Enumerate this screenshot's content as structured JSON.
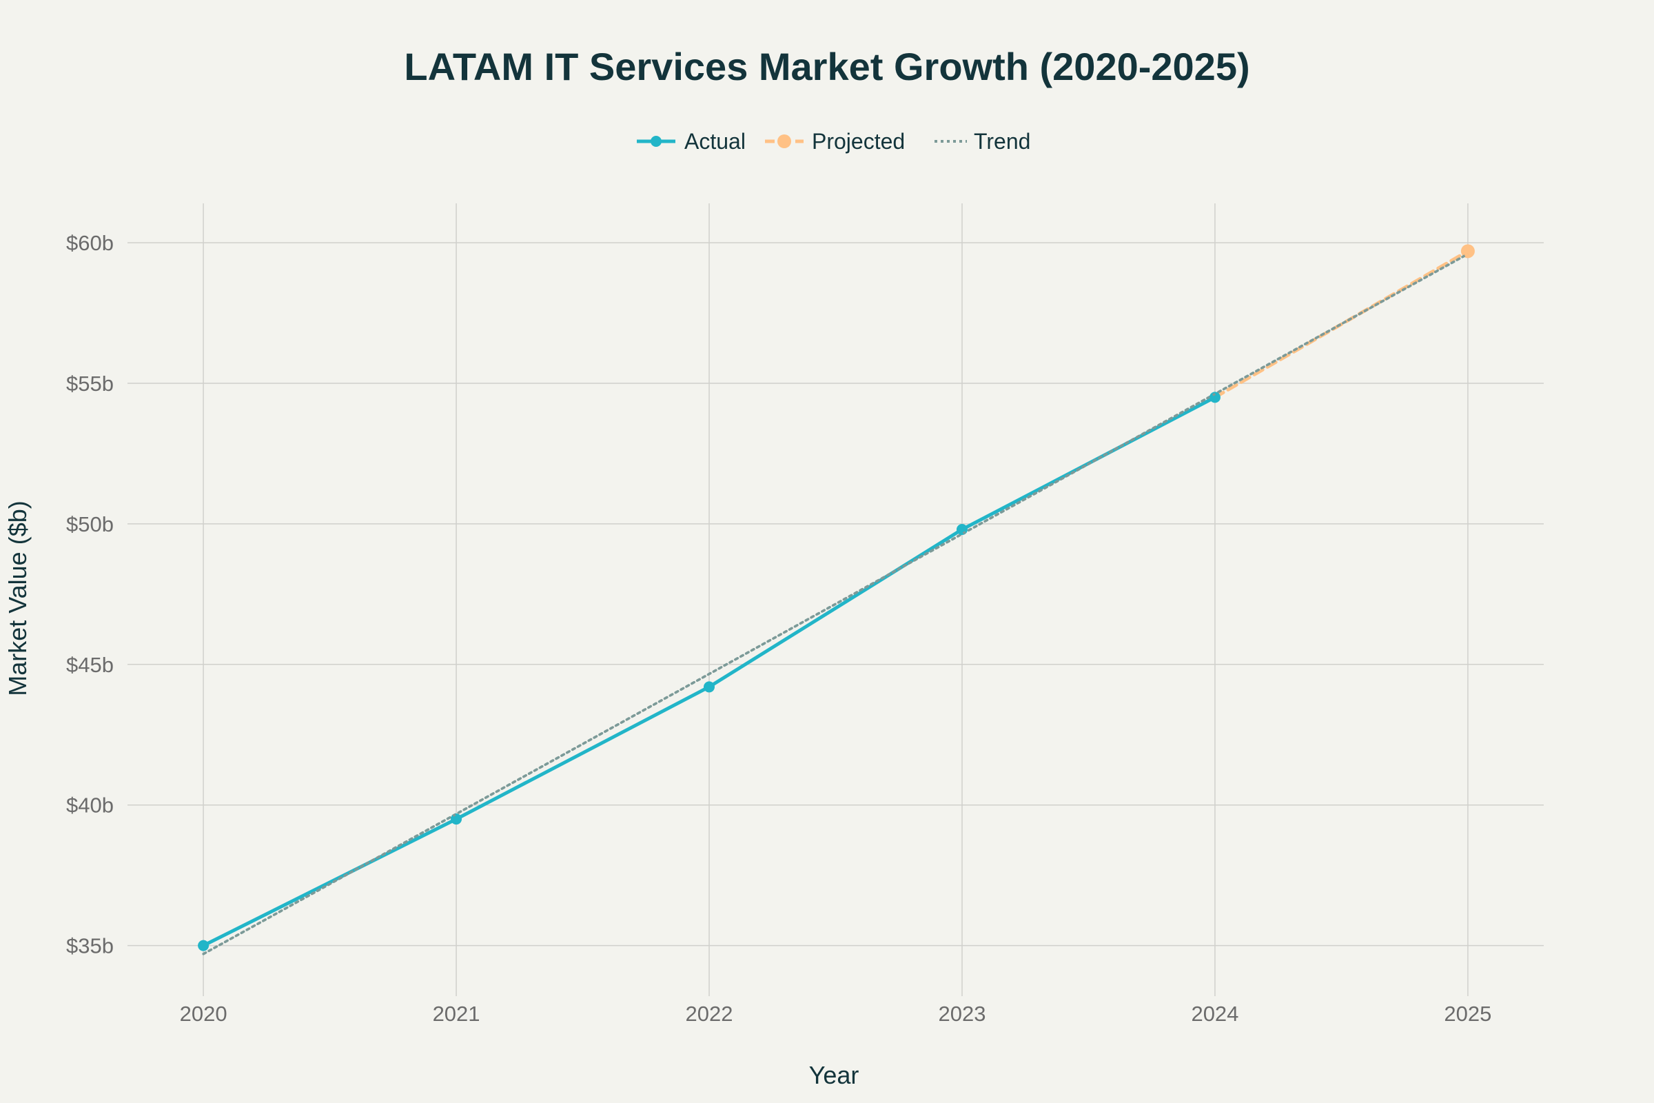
{
  "colors": {
    "background": "#f3f3ee",
    "text": "#13343b",
    "tick_text": "#6b6b6b",
    "grid": "#d0d0cc",
    "actual": "#22b5c8",
    "projected": "#ffc185",
    "trend": "#7c9a98"
  },
  "chart_data": {
    "type": "line",
    "title": "LATAM IT Services Market Growth (2020-2025)",
    "xlabel": "Year",
    "ylabel": "Market Value ($b)",
    "grid": true,
    "legend_position": "top-center",
    "xlim": [
      2019.7,
      2025.3
    ],
    "ylim": [
      33.2,
      61.4
    ],
    "x_ticks": [
      2020,
      2021,
      2022,
      2023,
      2024,
      2025
    ],
    "x_tick_labels": [
      "2020",
      "2021",
      "2022",
      "2023",
      "2024",
      "2025"
    ],
    "y_ticks": [
      35,
      40,
      45,
      50,
      55,
      60
    ],
    "y_tick_labels": [
      "$35b",
      "$40b",
      "$45b",
      "$50b",
      "$55b",
      "$60b"
    ],
    "series": [
      {
        "name": "Actual",
        "style": "solid",
        "markers": true,
        "x": [
          2020,
          2021,
          2022,
          2023,
          2024
        ],
        "values": [
          35.0,
          39.5,
          44.2,
          49.8,
          54.5
        ]
      },
      {
        "name": "Projected",
        "style": "dashed",
        "markers": true,
        "x": [
          2024,
          2025
        ],
        "values": [
          54.5,
          59.7
        ]
      },
      {
        "name": "Trend",
        "style": "dotted",
        "markers": false,
        "x": [
          2020,
          2025
        ],
        "values": [
          34.7,
          59.6
        ]
      }
    ]
  }
}
